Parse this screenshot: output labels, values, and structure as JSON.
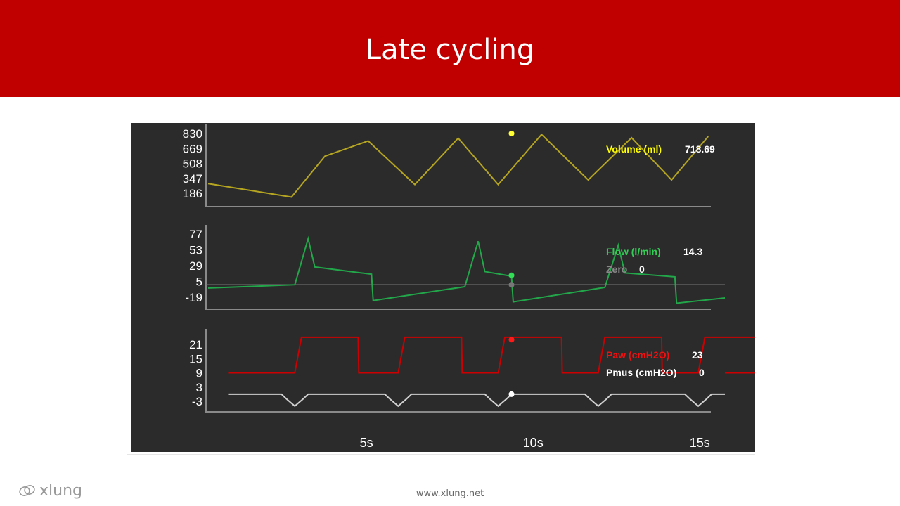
{
  "slide": {
    "title": "Late cycling",
    "footer": "www.xlung.net",
    "logo_text": "xlung",
    "header_color": "#c00000"
  },
  "chart_data": [
    {
      "type": "line",
      "panel": "volume",
      "series": [
        {
          "name": "Volume (ml)",
          "color": "#b5a520"
        }
      ],
      "x": [
        0.0,
        2.5,
        3.5,
        4.8,
        6.2,
        7.5,
        8.7,
        10.0,
        11.4,
        12.7,
        13.9,
        15.0
      ],
      "y": [
        290,
        145,
        585,
        750,
        280,
        780,
        280,
        820,
        330,
        785,
        330,
        800
      ],
      "marker": {
        "x": 9.1,
        "y": 830
      },
      "yticks": [
        830,
        669,
        508,
        347,
        186
      ],
      "xticks": [
        "5s",
        "10s",
        "15s"
      ],
      "legend_label": "Volume (ml)",
      "legend_value": "718.69"
    },
    {
      "type": "line",
      "panel": "flow",
      "series": [
        {
          "name": "Flow (l/min)",
          "color": "#22a84a"
        },
        {
          "name": "Zero",
          "color": "#777777"
        }
      ],
      "x": [
        0.0,
        2.6,
        3.0,
        3.2,
        4.9,
        4.95,
        7.7,
        8.1,
        8.3,
        9.1,
        9.15,
        11.9,
        12.3,
        12.5,
        14.0,
        14.05,
        15.5
      ],
      "y": [
        -5,
        0,
        70,
        27,
        16,
        -24,
        -3,
        66,
        20,
        13,
        -26,
        -4,
        60,
        18,
        12,
        -28,
        -20
      ],
      "marker": {
        "x": 9.1,
        "y": 14.3
      },
      "zero_marker": {
        "x": 9.1,
        "y": 0
      },
      "yticks": [
        77,
        53,
        29,
        5,
        -19
      ],
      "legend_label": "Flow (l/min)",
      "legend_value": "14.3",
      "zero_label": "Zero",
      "zero_value": "0"
    },
    {
      "type": "line",
      "panel": "pressure",
      "series": [
        {
          "name": "Paw (cmH2O)",
          "color": "#cc0000"
        },
        {
          "name": "Pmus (cmH2O)",
          "color": "#d0d0d0"
        }
      ],
      "paw_high": 24,
      "paw_low": 9,
      "breath_starts": [
        2.6,
        5.7,
        8.7,
        11.7,
        14.7
      ],
      "inspiration_duration": 1.9,
      "pmus_dip": -5,
      "marker_paw": {
        "x": 9.1,
        "y": 23
      },
      "marker_pmus": {
        "x": 9.1,
        "y": 0
      },
      "yticks": [
        21,
        15,
        9,
        3,
        -3
      ],
      "legend_label_1": "Paw (cmH2O)",
      "legend_value_1": "23",
      "legend_label_2": "Pmus (cmH2O)",
      "legend_value_2": "0"
    }
  ]
}
